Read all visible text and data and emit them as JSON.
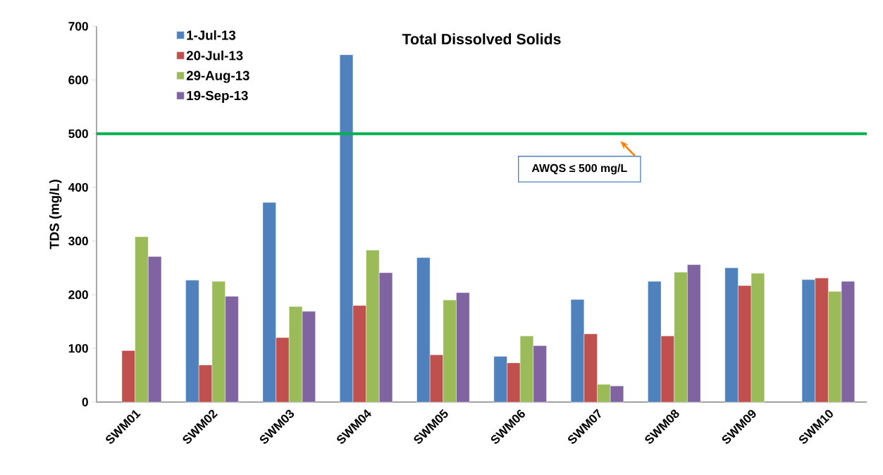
{
  "chart_data": {
    "type": "bar",
    "title": "Total Dissolved Solids",
    "ylabel": "TDS (mg/L)",
    "categories": [
      "SWM01",
      "SWM02",
      "SWM03",
      "SWM04",
      "SWM05",
      "SWM06",
      "SWM07",
      "SWM08",
      "SWM09",
      "SWM10"
    ],
    "series": [
      {
        "name": "1-Jul-13",
        "color": "#4f81bd",
        "values": [
          null,
          227,
          372,
          647,
          269,
          85,
          191,
          225,
          250,
          228
        ]
      },
      {
        "name": "20-Jul-13",
        "color": "#c0504d",
        "values": [
          96,
          69,
          120,
          180,
          88,
          73,
          127,
          123,
          217,
          231
        ]
      },
      {
        "name": "29-Aug-13",
        "color": "#9bbb59",
        "values": [
          308,
          225,
          178,
          283,
          190,
          123,
          33,
          242,
          240,
          206
        ]
      },
      {
        "name": "19-Sep-13",
        "color": "#8064a2",
        "values": [
          271,
          197,
          169,
          241,
          204,
          105,
          30,
          256,
          null,
          225
        ]
      }
    ],
    "ylim": [
      0,
      700
    ],
    "yticks": [
      0,
      100,
      200,
      300,
      400,
      500,
      600,
      700
    ],
    "ref_lines": [
      {
        "axis": "y",
        "value": 500,
        "label": "AWQS ≤ 500 mg/L",
        "color": "#00b050"
      }
    ],
    "grid": false,
    "legend": "top left"
  }
}
